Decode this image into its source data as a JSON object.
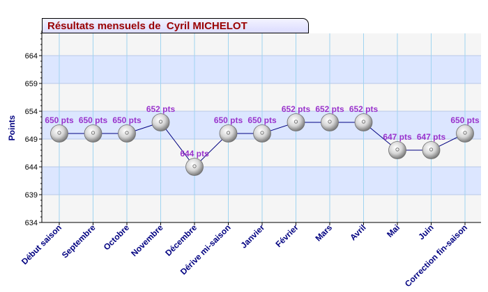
{
  "chart_data": {
    "type": "line",
    "title": "Résultats mensuels de  Cyril MICHELOT",
    "ylabel": "Points",
    "xlabel": "",
    "ylim": [
      634,
      668
    ],
    "yticks": [
      634,
      639,
      644,
      649,
      654,
      659,
      664
    ],
    "grid": true,
    "categories": [
      "Début saison",
      "Septembre",
      "Octobre",
      "Novembre",
      "Décembre",
      "Dérive mi-saison",
      "Janvier",
      "Février",
      "Mars",
      "Avril",
      "Mai",
      "Juin",
      "Correction fin-saison"
    ],
    "values": [
      650,
      650,
      650,
      652,
      644,
      650,
      650,
      652,
      652,
      652,
      647,
      647,
      650
    ],
    "data_labels": [
      "650 pts",
      "650 pts",
      "650 pts",
      "652 pts",
      "644 pts",
      "650 pts",
      "650 pts",
      "652 pts",
      "652 pts",
      "652 pts",
      "647 pts",
      "647 pts",
      "650 pts"
    ],
    "colors": {
      "band_blue": "#dce6ff",
      "band_gray": "#f5f5f5",
      "line": "#000080",
      "data_label": "#9933cc",
      "axis_text": "#000080",
      "title_text": "#990000"
    }
  }
}
